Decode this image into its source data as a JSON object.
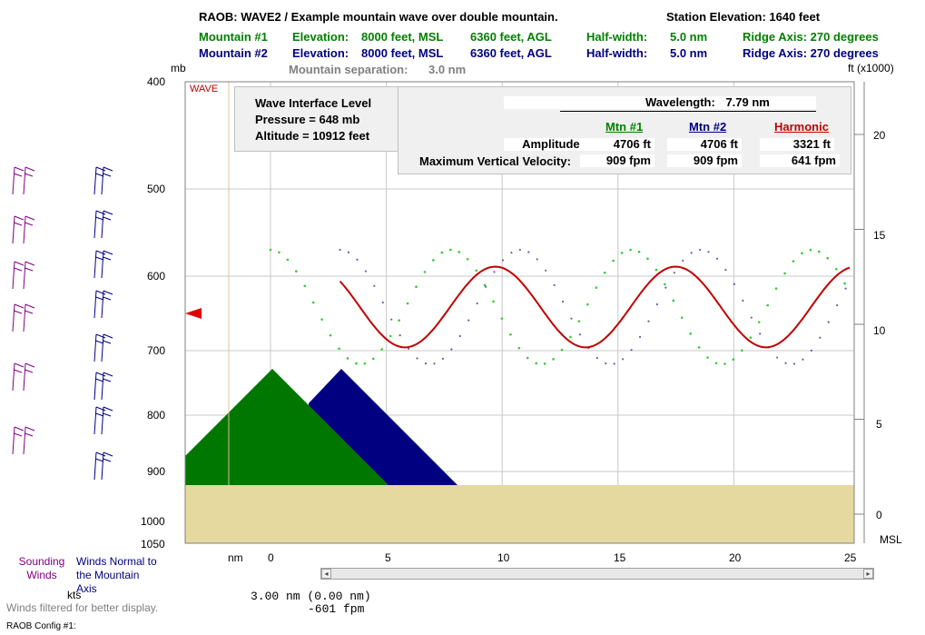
{
  "header": {
    "title": "RAOB: WAVE2 / Example mountain wave over double mountain.",
    "station_elevation": "Station Elevation: 1640 feet",
    "mtn1": {
      "name": "Mountain #1",
      "elevation_label": "Elevation:",
      "msl": "8000 feet, MSL",
      "agl": "6360 feet, AGL",
      "halfwidth_label": "Half-width:",
      "halfwidth": "5.0 nm",
      "ridge": "Ridge Axis: 270 degrees",
      "color": "#008000"
    },
    "mtn2": {
      "name": "Mountain #2",
      "elevation_label": "Elevation:",
      "msl": "8000 feet, MSL",
      "agl": "6360 feet, AGL",
      "halfwidth_label": "Half-width:",
      "halfwidth": "5.0 nm",
      "ridge": "Ridge Axis: 270 degrees",
      "color": "#000080"
    },
    "separation_label": "Mountain separation:",
    "separation": "3.0 nm"
  },
  "axes": {
    "left_unit": "mb",
    "right_unit": "ft (x1000)",
    "pressure_ticks": [
      "400",
      "500",
      "600",
      "700",
      "800",
      "900",
      "1000",
      "1050"
    ],
    "altitude_ticks": [
      "20",
      "15",
      "10",
      "5",
      "0"
    ],
    "msl": "MSL",
    "x_unit": "nm",
    "x_ticks": [
      "0",
      "5",
      "10",
      "15",
      "20",
      "25"
    ]
  },
  "wave_tag": "WAVE",
  "interface_box": {
    "title": "Wave Interface Level",
    "pressure": "Pressure =  648 mb",
    "altitude": "Altitude =  10912 feet"
  },
  "stats": {
    "wavelength_label": "Wavelength:",
    "wavelength": "7.79 nm",
    "col_mtn1": "Mtn #1",
    "col_mtn2": "Mtn #2",
    "col_harm": "Harmonic",
    "amplitude_label": "Amplitude:",
    "amp_mtn1": "4706 ft",
    "amp_mtn2": "4706 ft",
    "amp_harm": "3321 ft",
    "vv_label": "Maximum Vertical Velocity:",
    "vv_mtn1": "909 fpm",
    "vv_mtn2": "909 fpm",
    "vv_harm": "641 fpm",
    "harm_color": "#c00000"
  },
  "legend": {
    "sounding": "Sounding Winds",
    "normal": "Winds Normal to the Mountain Axis",
    "kts": "kts",
    "filtered": "Winds filtered for better display.",
    "config": "RAOB Config #1:"
  },
  "readout": {
    "position": "3.00 nm (0.00 nm)",
    "velocity": "-601 fpm"
  },
  "colors": {
    "mountain1": "#007800",
    "mountain2": "#000080",
    "ground": "#e5d9a0",
    "wave1": "#33cc33",
    "wave2": "#6060b0",
    "harmonic": "#c00000",
    "barb_sounding": "#800080",
    "barb_normal": "#000080"
  },
  "chart_data": {
    "type": "line",
    "xlabel": "nm",
    "xlim": [
      0,
      25
    ],
    "ylabel": "ft (x1000)",
    "ylim": [
      0,
      20
    ],
    "interface_altitude_ft": 10912,
    "wavelength_nm": 7.79,
    "series": [
      {
        "name": "Mtn #1",
        "amplitude_ft": 4706,
        "max_vertical_velocity_fpm": 909
      },
      {
        "name": "Mtn #2",
        "amplitude_ft": 4706,
        "max_vertical_velocity_fpm": 909
      },
      {
        "name": "Harmonic",
        "amplitude_ft": 3321,
        "max_vertical_velocity_fpm": 641
      }
    ]
  }
}
